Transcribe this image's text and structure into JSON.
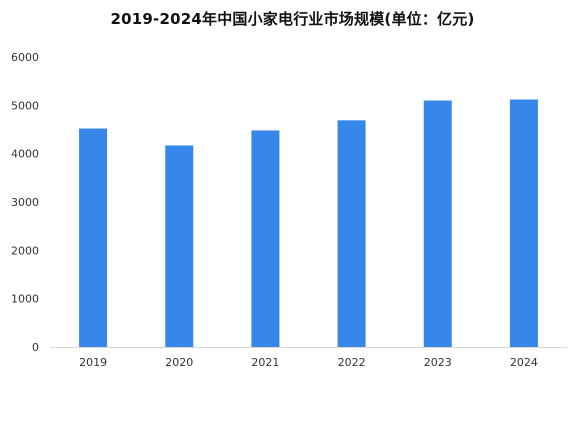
{
  "chart_data": {
    "type": "bar",
    "title": "2019-2024年中国小家电行业市场规模(单位：亿元)",
    "categories": [
      "2019",
      "2020",
      "2021",
      "2022",
      "2023",
      "2024"
    ],
    "values": [
      4520,
      4170,
      4480,
      4690,
      5100,
      5120
    ],
    "ylim": [
      0,
      6000
    ],
    "yticks": [
      0,
      1000,
      2000,
      3000,
      4000,
      5000,
      6000
    ],
    "xlabel": "",
    "ylabel": "",
    "grid": false,
    "bar_color": "#3787EB"
  }
}
